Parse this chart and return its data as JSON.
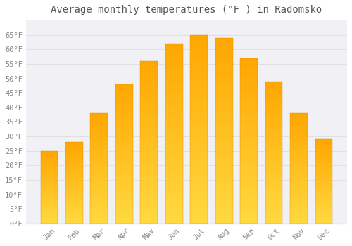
{
  "title": "Average monthly temperatures (°F ) in Radomsko",
  "months": [
    "Jan",
    "Feb",
    "Mar",
    "Apr",
    "May",
    "Jun",
    "Jul",
    "Aug",
    "Sep",
    "Oct",
    "Nov",
    "Dec"
  ],
  "values": [
    25,
    28,
    38,
    48,
    56,
    62,
    65,
    64,
    57,
    49,
    38,
    29
  ],
  "bar_color_top": "#FFB020",
  "bar_color_bottom": "#FFD070",
  "background_color": "#FFFFFF",
  "plot_bg_color": "#F0F0F5",
  "grid_color": "#DDDDDD",
  "ylim": [
    0,
    70
  ],
  "yticks": [
    0,
    5,
    10,
    15,
    20,
    25,
    30,
    35,
    40,
    45,
    50,
    55,
    60,
    65
  ],
  "tick_label_color": "#888888",
  "title_color": "#555555",
  "title_fontsize": 10,
  "tick_fontsize": 7.5,
  "font_family": "monospace"
}
